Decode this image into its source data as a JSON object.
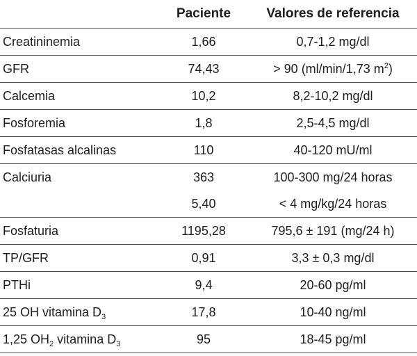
{
  "table": {
    "headers": {
      "name": "",
      "patient": "Paciente",
      "reference": "Valores de referencia"
    },
    "rows": [
      {
        "name": "Creatininemia",
        "patient": "1,66",
        "reference": "0,7-1,2 mg/dl"
      },
      {
        "name": "GFR",
        "patient": "74,43",
        "reference_pre": "> 90 (ml/min/1,73 m",
        "reference_sup": "2",
        "reference_post": ")"
      },
      {
        "name": "Calcemia",
        "patient": "10,2",
        "reference": "8,2-10,2 mg/dl"
      },
      {
        "name": "Fosforemia",
        "patient": "1,8",
        "reference": "2,5-4,5 mg/dl"
      },
      {
        "name": "Fosfatasas alcalinas",
        "patient": "110",
        "reference": "40-120 mU/ml"
      },
      {
        "name": "Calciuria",
        "patient": "363",
        "reference": "100-300 mg/24 horas"
      },
      {
        "name": "",
        "patient": "5,40",
        "reference": "< 4 mg/kg/24 horas"
      },
      {
        "name": "Fosfaturia",
        "patient": "1195,28",
        "reference": "795,6 ± 191 (mg/24 h)"
      },
      {
        "name": "TP/GFR",
        "patient": "0,91",
        "reference": "3,3 ± 0,3 mg/dl"
      },
      {
        "name": "PTHi",
        "patient": "9,4",
        "reference": "20-60 pg/ml"
      },
      {
        "name_pre": "25 OH vitamina D",
        "name_sub": "3",
        "patient": "17,8",
        "reference": "10-40 ng/ml"
      },
      {
        "name_pre": "1,25 OH",
        "name_sub1": "2",
        "name_mid": " vitamina D",
        "name_sub2": "3",
        "patient": "95",
        "reference": "18-45 pg/ml"
      }
    ]
  }
}
